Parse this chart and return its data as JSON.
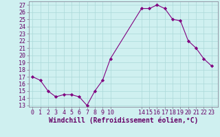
{
  "x": [
    0,
    1,
    2,
    3,
    4,
    5,
    6,
    7,
    8,
    9,
    10,
    14,
    15,
    16,
    17,
    18,
    19,
    20,
    21,
    22,
    23
  ],
  "y": [
    17.0,
    16.5,
    15.0,
    14.2,
    14.5,
    14.5,
    14.2,
    13.0,
    15.0,
    16.5,
    19.5,
    26.5,
    26.5,
    27.0,
    26.5,
    25.0,
    24.8,
    22.0,
    21.0,
    19.5,
    18.5
  ],
  "line_color": "#800080",
  "marker": "D",
  "marker_size": 2.2,
  "bg_color": "#cff0f0",
  "grid_color": "#aad8d8",
  "xlabel": "Windchill (Refroidissement éolien,°C)",
  "xlabel_fontsize": 7,
  "ylabel_ticks": [
    13,
    14,
    15,
    16,
    17,
    18,
    19,
    20,
    21,
    22,
    23,
    24,
    25,
    26,
    27
  ],
  "xticks": [
    0,
    1,
    2,
    3,
    4,
    5,
    6,
    7,
    8,
    9,
    10,
    14,
    15,
    16,
    17,
    18,
    19,
    20,
    21,
    22,
    23
  ],
  "xlim": [
    -0.5,
    23.8
  ],
  "ylim": [
    12.8,
    27.5
  ],
  "tick_fontsize": 6,
  "text_color": "#660066"
}
